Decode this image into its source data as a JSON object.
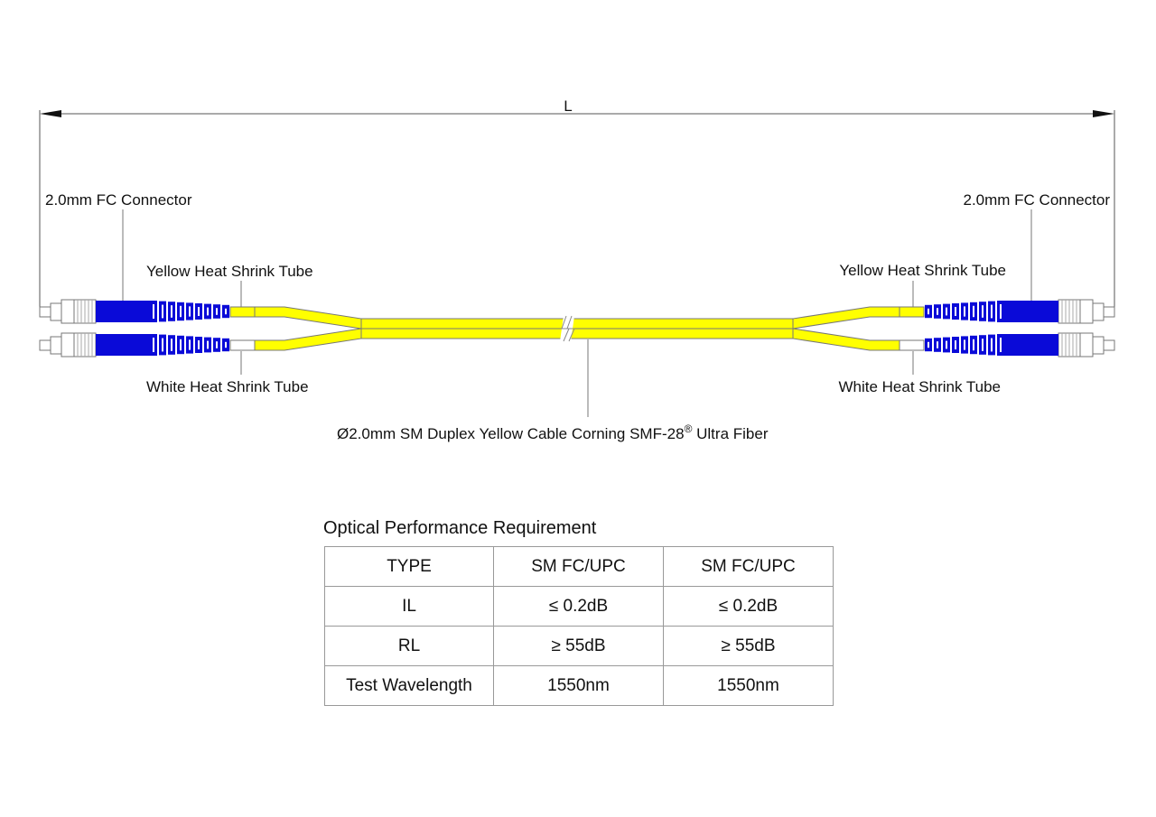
{
  "dimension": {
    "label": "L"
  },
  "labels": {
    "left_connector": "2.0mm FC Connector",
    "right_connector": "2.0mm FC Connector",
    "left_yellow_tube": "Yellow Heat Shrink Tube",
    "right_yellow_tube": "Yellow Heat Shrink Tube",
    "left_white_tube": "White Heat Shrink Tube",
    "right_white_tube": "White Heat Shrink Tube",
    "cable": "Ø2.0mm SM Duplex Yellow Cable  Corning SMF-28",
    "cable_mark": "®",
    "cable_suffix": " Ultra Fiber"
  },
  "colors": {
    "cable": "#ffff00",
    "connector_boot": "#0a0ad8",
    "heat_shrink_white": "#ffffff"
  },
  "table": {
    "title": "Optical Performance Requirement",
    "rows": [
      [
        "TYPE",
        "SM FC/UPC",
        "SM FC/UPC"
      ],
      [
        "IL",
        "≤ 0.2dB",
        "≤ 0.2dB"
      ],
      [
        "RL",
        "≥ 55dB",
        "≥ 55dB"
      ],
      [
        "Test Wavelength",
        "1550nm",
        "1550nm"
      ]
    ]
  }
}
